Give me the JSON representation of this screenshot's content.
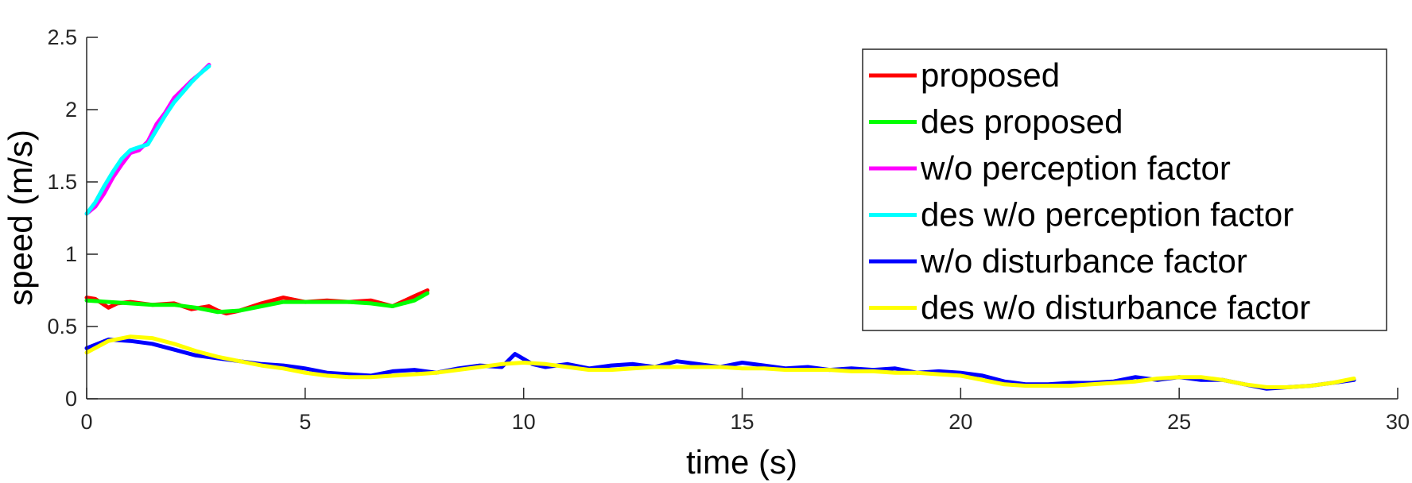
{
  "chart_data": {
    "type": "line",
    "title": "",
    "xlabel": "time (s)",
    "ylabel": "speed (m/s)",
    "xlim": [
      0,
      30
    ],
    "ylim": [
      0,
      2.5
    ],
    "xticks": [
      0,
      5,
      10,
      15,
      20,
      25,
      30
    ],
    "yticks": [
      0,
      0.5,
      1,
      1.5,
      2,
      2.5
    ],
    "xtick_labels": [
      "0",
      "5",
      "10",
      "15",
      "20",
      "25",
      "30"
    ],
    "ytick_labels": [
      "0",
      "0.5",
      "1",
      "1.5",
      "2",
      "2.5"
    ],
    "grid": false,
    "legend_position": "top-right",
    "series": [
      {
        "name": "proposed",
        "color": "#ff0000",
        "x": [
          0,
          0.2,
          0.5,
          0.7,
          1.0,
          1.5,
          2.0,
          2.4,
          2.8,
          3.0,
          3.2,
          3.5,
          4.0,
          4.5,
          5.0,
          5.5,
          6.0,
          6.5,
          7.0,
          7.5,
          7.8
        ],
        "y": [
          0.7,
          0.69,
          0.63,
          0.66,
          0.67,
          0.65,
          0.66,
          0.62,
          0.64,
          0.61,
          0.59,
          0.61,
          0.66,
          0.7,
          0.67,
          0.68,
          0.67,
          0.68,
          0.64,
          0.71,
          0.75
        ]
      },
      {
        "name": "des proposed",
        "color": "#00ff00",
        "x": [
          0,
          0.5,
          1.0,
          1.5,
          2.0,
          2.5,
          3.0,
          3.5,
          4.0,
          4.5,
          5.0,
          5.5,
          6.0,
          6.5,
          7.0,
          7.5,
          7.8
        ],
        "y": [
          0.68,
          0.67,
          0.66,
          0.65,
          0.65,
          0.63,
          0.6,
          0.61,
          0.64,
          0.67,
          0.67,
          0.67,
          0.67,
          0.66,
          0.64,
          0.68,
          0.73
        ]
      },
      {
        "name": "w/o perception factor",
        "color": "#ff00ff",
        "x": [
          0,
          0.2,
          0.4,
          0.6,
          0.8,
          1.0,
          1.2,
          1.4,
          1.6,
          1.8,
          2.0,
          2.2,
          2.4,
          2.6,
          2.8
        ],
        "y": [
          1.28,
          1.33,
          1.42,
          1.53,
          1.62,
          1.7,
          1.72,
          1.78,
          1.9,
          1.98,
          2.08,
          2.14,
          2.2,
          2.25,
          2.31
        ]
      },
      {
        "name": "des w/o perception factor",
        "color": "#00ffff",
        "x": [
          0,
          0.2,
          0.4,
          0.6,
          0.8,
          1.0,
          1.2,
          1.4,
          1.6,
          1.8,
          2.0,
          2.2,
          2.4,
          2.6,
          2.8
        ],
        "y": [
          1.28,
          1.36,
          1.47,
          1.57,
          1.66,
          1.72,
          1.74,
          1.76,
          1.86,
          1.96,
          2.05,
          2.12,
          2.19,
          2.25,
          2.3
        ]
      },
      {
        "name": "w/o disturbance factor",
        "color": "#0000ff",
        "x": [
          0,
          0.5,
          1.0,
          1.5,
          2.0,
          2.5,
          3.0,
          3.5,
          4.0,
          4.5,
          5.0,
          5.5,
          6.0,
          6.5,
          7.0,
          7.5,
          8.0,
          8.5,
          9.0,
          9.5,
          9.8,
          10.2,
          10.5,
          11.0,
          11.5,
          12.0,
          12.5,
          13.0,
          13.5,
          14.0,
          14.5,
          15.0,
          15.5,
          16.0,
          16.5,
          17.0,
          17.5,
          18.0,
          18.5,
          19.0,
          19.5,
          20.0,
          20.5,
          21.0,
          21.5,
          22.0,
          22.5,
          23.0,
          23.5,
          24.0,
          24.5,
          25.0,
          25.5,
          26.0,
          26.5,
          27.0,
          27.5,
          28.0,
          28.5,
          29.0
        ],
        "y": [
          0.35,
          0.41,
          0.4,
          0.38,
          0.34,
          0.3,
          0.28,
          0.26,
          0.24,
          0.23,
          0.21,
          0.18,
          0.17,
          0.16,
          0.19,
          0.2,
          0.18,
          0.21,
          0.23,
          0.22,
          0.31,
          0.24,
          0.22,
          0.24,
          0.21,
          0.23,
          0.24,
          0.22,
          0.26,
          0.24,
          0.22,
          0.25,
          0.23,
          0.21,
          0.22,
          0.2,
          0.21,
          0.2,
          0.21,
          0.18,
          0.19,
          0.18,
          0.16,
          0.12,
          0.1,
          0.1,
          0.11,
          0.11,
          0.12,
          0.15,
          0.13,
          0.15,
          0.13,
          0.13,
          0.1,
          0.07,
          0.08,
          0.09,
          0.11,
          0.13
        ]
      },
      {
        "name": "des w/o disturbance factor",
        "color": "#ffff00",
        "x": [
          0,
          0.5,
          1.0,
          1.5,
          2.0,
          2.5,
          3.0,
          3.5,
          4.0,
          4.5,
          5.0,
          5.5,
          6.0,
          6.5,
          7.0,
          7.5,
          8.0,
          8.5,
          9.0,
          9.5,
          10.0,
          10.5,
          11.0,
          11.5,
          12.0,
          12.5,
          13.0,
          13.5,
          14.0,
          14.5,
          15.0,
          15.5,
          16.0,
          16.5,
          17.0,
          17.5,
          18.0,
          18.5,
          19.0,
          19.5,
          20.0,
          20.5,
          21.0,
          21.5,
          22.0,
          22.5,
          23.0,
          23.5,
          24.0,
          24.5,
          25.0,
          25.5,
          26.0,
          26.5,
          27.0,
          27.5,
          28.0,
          28.5,
          29.0
        ],
        "y": [
          0.32,
          0.4,
          0.43,
          0.42,
          0.38,
          0.33,
          0.29,
          0.26,
          0.23,
          0.21,
          0.18,
          0.16,
          0.15,
          0.15,
          0.16,
          0.17,
          0.18,
          0.2,
          0.22,
          0.24,
          0.25,
          0.24,
          0.22,
          0.2,
          0.2,
          0.21,
          0.22,
          0.22,
          0.22,
          0.22,
          0.21,
          0.21,
          0.2,
          0.2,
          0.2,
          0.19,
          0.19,
          0.18,
          0.18,
          0.17,
          0.16,
          0.13,
          0.1,
          0.09,
          0.09,
          0.09,
          0.1,
          0.11,
          0.12,
          0.14,
          0.15,
          0.15,
          0.13,
          0.1,
          0.08,
          0.08,
          0.09,
          0.11,
          0.14
        ]
      }
    ]
  }
}
